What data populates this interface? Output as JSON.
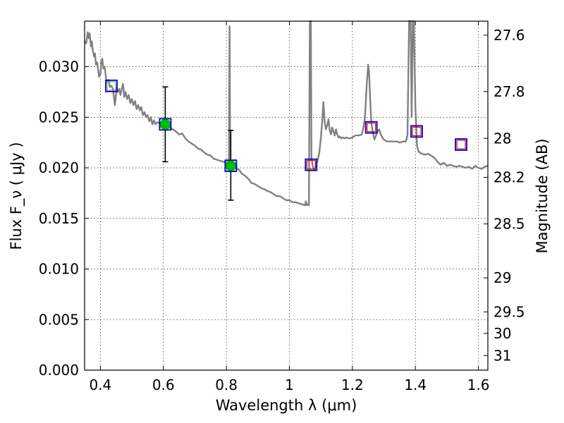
{
  "chart_data": {
    "type": "line",
    "xlabel": "Wavelength  λ (μm)",
    "ylabel": "Flux  F_ν  ( μJy )",
    "y2label": "Magnitude (AB)",
    "xlim": [
      0.35,
      1.63
    ],
    "ylim": [
      0.0,
      0.0345
    ],
    "grid": true,
    "x_ticks": [
      {
        "value": 0.4,
        "label": "0.4"
      },
      {
        "value": 0.6,
        "label": "0.6"
      },
      {
        "value": 0.8,
        "label": "0.8"
      },
      {
        "value": 1.0,
        "label": "1"
      },
      {
        "value": 1.2,
        "label": "1.2"
      },
      {
        "value": 1.4,
        "label": "1.4"
      },
      {
        "value": 1.6,
        "label": "1.6"
      }
    ],
    "y_ticks": [
      {
        "value": 0.0,
        "label": "0.000"
      },
      {
        "value": 0.005,
        "label": "0.005"
      },
      {
        "value": 0.01,
        "label": "0.010"
      },
      {
        "value": 0.015,
        "label": "0.015"
      },
      {
        "value": 0.02,
        "label": "0.020"
      },
      {
        "value": 0.025,
        "label": "0.025"
      },
      {
        "value": 0.03,
        "label": "0.030"
      }
    ],
    "y2_ticks": [
      {
        "mag": 27.6,
        "label": "27.6"
      },
      {
        "mag": 27.8,
        "label": "27.8"
      },
      {
        "mag": 28.0,
        "label": "28"
      },
      {
        "mag": 28.2,
        "label": "28.2"
      },
      {
        "mag": 28.5,
        "label": "28.5"
      },
      {
        "mag": 29.0,
        "label": "29"
      },
      {
        "mag": 29.5,
        "label": "29.5"
      },
      {
        "mag": 30.0,
        "label": "30"
      },
      {
        "mag": 31.0,
        "label": "31"
      }
    ],
    "sed_model": {
      "color": "#808080",
      "points": [
        [
          0.35,
          0.0325
        ],
        [
          0.355,
          0.0323
        ],
        [
          0.36,
          0.0334
        ],
        [
          0.363,
          0.0328
        ],
        [
          0.366,
          0.0333
        ],
        [
          0.37,
          0.032
        ],
        [
          0.373,
          0.0325
        ],
        [
          0.376,
          0.0316
        ],
        [
          0.38,
          0.031
        ],
        [
          0.383,
          0.0313
        ],
        [
          0.386,
          0.0302
        ],
        [
          0.39,
          0.0304
        ],
        [
          0.393,
          0.0297
        ],
        [
          0.396,
          0.029
        ],
        [
          0.4,
          0.0292
        ],
        [
          0.403,
          0.0304
        ],
        [
          0.406,
          0.0308
        ],
        [
          0.41,
          0.0298
        ],
        [
          0.414,
          0.03
        ],
        [
          0.418,
          0.0288
        ],
        [
          0.422,
          0.0285
        ],
        [
          0.426,
          0.0287
        ],
        [
          0.43,
          0.028
        ],
        [
          0.435,
          0.0281
        ],
        [
          0.44,
          0.0278
        ],
        [
          0.443,
          0.027
        ],
        [
          0.446,
          0.0262
        ],
        [
          0.449,
          0.027
        ],
        [
          0.452,
          0.0279
        ],
        [
          0.456,
          0.0275
        ],
        [
          0.46,
          0.0278
        ],
        [
          0.464,
          0.0272
        ],
        [
          0.468,
          0.0278
        ],
        [
          0.472,
          0.0283
        ],
        [
          0.476,
          0.027
        ],
        [
          0.48,
          0.0275
        ],
        [
          0.485,
          0.0268
        ],
        [
          0.49,
          0.0272
        ],
        [
          0.495,
          0.0264
        ],
        [
          0.5,
          0.0268
        ],
        [
          0.505,
          0.0262
        ],
        [
          0.51,
          0.0266
        ],
        [
          0.515,
          0.0258
        ],
        [
          0.52,
          0.0262
        ],
        [
          0.525,
          0.0257
        ],
        [
          0.53,
          0.026
        ],
        [
          0.535,
          0.0252
        ],
        [
          0.54,
          0.0255
        ],
        [
          0.545,
          0.025
        ],
        [
          0.55,
          0.0252
        ],
        [
          0.555,
          0.0246
        ],
        [
          0.56,
          0.025
        ],
        [
          0.565,
          0.0243
        ],
        [
          0.57,
          0.0247
        ],
        [
          0.575,
          0.0243
        ],
        [
          0.58,
          0.0245
        ],
        [
          0.59,
          0.0244
        ],
        [
          0.6,
          0.0242
        ],
        [
          0.61,
          0.0241
        ],
        [
          0.62,
          0.024
        ],
        [
          0.63,
          0.0238
        ],
        [
          0.64,
          0.0236
        ],
        [
          0.65,
          0.0233
        ],
        [
          0.66,
          0.0234
        ],
        [
          0.67,
          0.0229
        ],
        [
          0.68,
          0.0226
        ],
        [
          0.69,
          0.0224
        ],
        [
          0.7,
          0.0222
        ],
        [
          0.71,
          0.0219
        ],
        [
          0.72,
          0.0218
        ],
        [
          0.73,
          0.0215
        ],
        [
          0.74,
          0.0213
        ],
        [
          0.75,
          0.0212
        ],
        [
          0.76,
          0.0209
        ],
        [
          0.77,
          0.0208
        ],
        [
          0.78,
          0.0207
        ],
        [
          0.79,
          0.0206
        ],
        [
          0.8,
          0.0205
        ],
        [
          0.805,
          0.0204
        ],
        [
          0.808,
          0.0205
        ],
        [
          0.81,
          0.034
        ],
        [
          0.812,
          0.0205
        ],
        [
          0.815,
          0.0203
        ],
        [
          0.82,
          0.0202
        ],
        [
          0.83,
          0.02
        ],
        [
          0.84,
          0.0198
        ],
        [
          0.85,
          0.0194
        ],
        [
          0.86,
          0.0192
        ],
        [
          0.87,
          0.0189
        ],
        [
          0.88,
          0.0185
        ],
        [
          0.89,
          0.0184
        ],
        [
          0.9,
          0.0182
        ],
        [
          0.91,
          0.018
        ],
        [
          0.92,
          0.0179
        ],
        [
          0.93,
          0.0177
        ],
        [
          0.94,
          0.0176
        ],
        [
          0.95,
          0.0174
        ],
        [
          0.96,
          0.0172
        ],
        [
          0.97,
          0.0172
        ],
        [
          0.98,
          0.017
        ],
        [
          0.99,
          0.0168
        ],
        [
          1.0,
          0.0168
        ],
        [
          1.01,
          0.0166
        ],
        [
          1.02,
          0.0166
        ],
        [
          1.03,
          0.0165
        ],
        [
          1.04,
          0.0164
        ],
        [
          1.05,
          0.0163
        ],
        [
          1.052,
          0.0167
        ],
        [
          1.056,
          0.0163
        ],
        [
          1.06,
          0.0164
        ],
        [
          1.062,
          0.0163
        ],
        [
          1.065,
          0.0345
        ],
        [
          1.068,
          0.0345
        ],
        [
          1.07,
          0.021
        ],
        [
          1.075,
          0.02
        ],
        [
          1.08,
          0.0198
        ],
        [
          1.085,
          0.0203
        ],
        [
          1.09,
          0.0208
        ],
        [
          1.095,
          0.0215
        ],
        [
          1.1,
          0.023
        ],
        [
          1.105,
          0.025
        ],
        [
          1.108,
          0.0265
        ],
        [
          1.112,
          0.0245
        ],
        [
          1.116,
          0.0238
        ],
        [
          1.12,
          0.0242
        ],
        [
          1.124,
          0.0248
        ],
        [
          1.128,
          0.0237
        ],
        [
          1.132,
          0.0233
        ],
        [
          1.136,
          0.024
        ],
        [
          1.14,
          0.0236
        ],
        [
          1.144,
          0.0232
        ],
        [
          1.148,
          0.0238
        ],
        [
          1.152,
          0.0233
        ],
        [
          1.156,
          0.023
        ],
        [
          1.16,
          0.0231
        ],
        [
          1.165,
          0.0229
        ],
        [
          1.17,
          0.023
        ],
        [
          1.175,
          0.0229
        ],
        [
          1.18,
          0.023
        ],
        [
          1.19,
          0.0229
        ],
        [
          1.2,
          0.023
        ],
        [
          1.21,
          0.0232
        ],
        [
          1.22,
          0.0232
        ],
        [
          1.23,
          0.0233
        ],
        [
          1.235,
          0.024
        ],
        [
          1.24,
          0.025
        ],
        [
          1.245,
          0.028
        ],
        [
          1.25,
          0.0302
        ],
        [
          1.253,
          0.0295
        ],
        [
          1.256,
          0.027
        ],
        [
          1.26,
          0.0245
        ],
        [
          1.265,
          0.0235
        ],
        [
          1.27,
          0.0228
        ],
        [
          1.275,
          0.0232
        ],
        [
          1.28,
          0.0236
        ],
        [
          1.285,
          0.0238
        ],
        [
          1.29,
          0.0233
        ],
        [
          1.295,
          0.023
        ],
        [
          1.3,
          0.0228
        ],
        [
          1.31,
          0.0226
        ],
        [
          1.32,
          0.0226
        ],
        [
          1.33,
          0.0226
        ],
        [
          1.34,
          0.0226
        ],
        [
          1.35,
          0.0225
        ],
        [
          1.36,
          0.0226
        ],
        [
          1.37,
          0.0226
        ],
        [
          1.375,
          0.0232
        ],
        [
          1.38,
          0.0345
        ],
        [
          1.385,
          0.0345
        ],
        [
          1.388,
          0.025
        ],
        [
          1.392,
          0.0345
        ],
        [
          1.395,
          0.0345
        ],
        [
          1.4,
          0.026
        ],
        [
          1.405,
          0.0222
        ],
        [
          1.41,
          0.0216
        ],
        [
          1.42,
          0.0214
        ],
        [
          1.43,
          0.0213
        ],
        [
          1.44,
          0.0214
        ],
        [
          1.45,
          0.0212
        ],
        [
          1.46,
          0.021
        ],
        [
          1.47,
          0.0206
        ],
        [
          1.48,
          0.0203
        ],
        [
          1.49,
          0.0205
        ],
        [
          1.5,
          0.0202
        ],
        [
          1.51,
          0.0203
        ],
        [
          1.52,
          0.0202
        ],
        [
          1.53,
          0.0201
        ],
        [
          1.54,
          0.0202
        ],
        [
          1.55,
          0.0201
        ],
        [
          1.56,
          0.02
        ],
        [
          1.57,
          0.0201
        ],
        [
          1.58,
          0.0199
        ],
        [
          1.59,
          0.0202
        ],
        [
          1.6,
          0.02
        ],
        [
          1.61,
          0.0199
        ],
        [
          1.62,
          0.0201
        ],
        [
          1.63,
          0.0202
        ]
      ]
    },
    "photometry_model": {
      "points": [
        {
          "x": 0.435,
          "y": 0.0281
        },
        {
          "x": 0.606,
          "y": 0.0243
        },
        {
          "x": 0.814,
          "y": 0.0202
        },
        {
          "x": 1.069,
          "y": 0.0203
        },
        {
          "x": 1.26,
          "y": 0.024
        },
        {
          "x": 1.404,
          "y": 0.0236
        },
        {
          "x": 1.545,
          "y": 0.0223
        }
      ]
    },
    "photometry_observed": {
      "color": "#00bb00",
      "points": [
        {
          "x": 0.606,
          "y": 0.0243,
          "yerr_low": 0.0206,
          "yerr_high": 0.028
        },
        {
          "x": 0.814,
          "y": 0.0202,
          "yerr_low": 0.0168,
          "yerr_high": 0.0237
        }
      ]
    },
    "upper_limits": {
      "color": "#dd0000",
      "points": [
        {
          "x": 1.069,
          "y": 0.0203
        },
        {
          "x": 1.26,
          "y": 0.024
        },
        {
          "x": 1.404,
          "y": 0.0236
        },
        {
          "x": 1.545,
          "y": 0.0223
        }
      ]
    },
    "secondary_limits": {
      "color": "#66aa66",
      "points": [
        {
          "x": 0.435,
          "y": 0.0281
        }
      ]
    }
  }
}
